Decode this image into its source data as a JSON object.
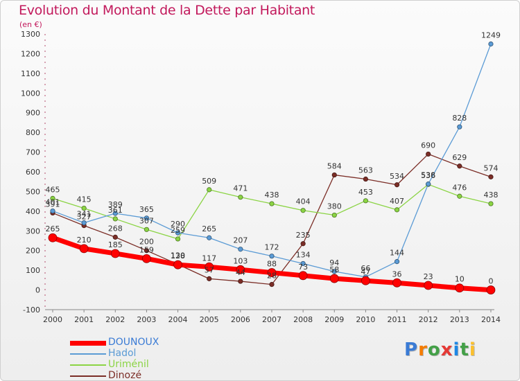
{
  "header": {
    "title": "Evolution du Montant de la Dette par Habitant",
    "unit": "(en €)"
  },
  "logo": {
    "text": "Proxiti",
    "colors": [
      "#3a7bd5",
      "#f57c00",
      "#43a047",
      "#e53935",
      "#1e88e5",
      "#43a047",
      "#fbc02d"
    ]
  },
  "chart_data": {
    "type": "line",
    "title": "Evolution du Montant de la Dette par Habitant",
    "ylabel": "(en €)",
    "xlabel": "",
    "x": [
      "2000",
      "2001",
      "2002",
      "2003",
      "2004",
      "2005",
      "2006",
      "2007",
      "2008",
      "2009",
      "2010",
      "2011",
      "2012",
      "2013",
      "2014"
    ],
    "ylim": [
      -100,
      1300
    ],
    "yticks": [
      -100,
      0,
      100,
      200,
      300,
      400,
      500,
      600,
      700,
      800,
      900,
      1000,
      1100,
      1200,
      1300
    ],
    "grid": false,
    "legend_position": "bottom-left",
    "series": [
      {
        "name": "DOUNOUX",
        "color": "#ff0000",
        "values": [
          265,
          210,
          185,
          159,
          128,
          117,
          103,
          88,
          73,
          58,
          47,
          36,
          23,
          10,
          0
        ],
        "labels": [
          "265",
          "210",
          "185",
          "159",
          "128",
          "117",
          "103",
          "88",
          "73",
          "58",
          "47",
          "36",
          "23",
          "10",
          "0"
        ]
      },
      {
        "name": "Hadol",
        "color": "#5b9bd5",
        "values": [
          401,
          341,
          389,
          365,
          290,
          265,
          207,
          172,
          134,
          94,
          66,
          144,
          538,
          828,
          1249
        ],
        "labels": [
          "401",
          "341",
          "389",
          "365",
          "290",
          "265",
          "207",
          "172",
          "134",
          "94",
          "66",
          "144",
          "538",
          "828",
          "1249"
        ]
      },
      {
        "name": "Uriménil",
        "color": "#8bd444",
        "values": [
          465,
          415,
          361,
          307,
          259,
          509,
          471,
          438,
          404,
          380,
          453,
          407,
          536,
          476,
          438
        ],
        "labels": [
          "465",
          "415",
          "361",
          "307",
          "259",
          "509",
          "471",
          "438",
          "404",
          "380",
          "453",
          "407",
          "536",
          "476",
          "438"
        ]
      },
      {
        "name": "Dinozé",
        "color": "#7b2d26",
        "values": [
          391,
          327,
          268,
          200,
          130,
          57,
          44,
          28,
          235,
          584,
          563,
          534,
          690,
          629,
          574
        ],
        "labels": [
          "391",
          "327",
          "268",
          "200",
          "130",
          "57",
          "44",
          "28",
          "235",
          "584",
          "563",
          "534",
          "690",
          "629",
          "574"
        ]
      }
    ]
  }
}
